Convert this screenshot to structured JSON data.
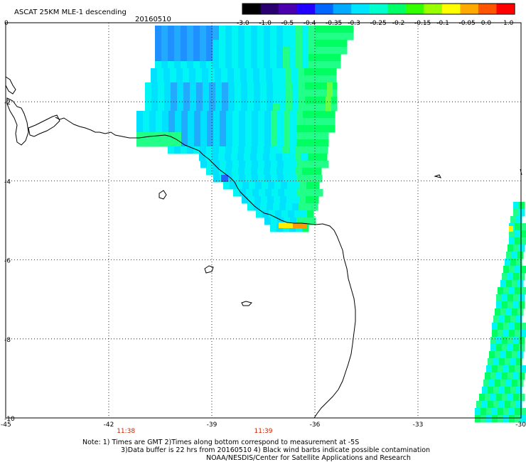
{
  "header": {
    "title": "ASCAT 25KM MLE-1 descending",
    "date": "20160510"
  },
  "colorbar": {
    "labels": [
      "-3.0",
      "-1.0",
      "-0.5",
      "-0.4",
      "-0.35",
      "-0.3",
      "-0.25",
      "-0.2",
      "-0.15",
      "-0.1",
      "-0.05",
      "0.0",
      "1.0"
    ],
    "colors": [
      "#000000",
      "#2a0070",
      "#4b00b0",
      "#2200ff",
      "#0066ff",
      "#00aaff",
      "#00e5ff",
      "#00ffcc",
      "#00ff66",
      "#33ff00",
      "#99ff00",
      "#ffff00",
      "#ffaa00",
      "#ff5500",
      "#ff0000"
    ]
  },
  "map": {
    "lon_range": [
      -45,
      -30
    ],
    "lat_range": [
      -10,
      0
    ],
    "lon_ticks": [
      "-45",
      "-42",
      "-39",
      "-36",
      "-33",
      "-30"
    ],
    "lat_ticks": [
      "0",
      "-2",
      "-4",
      "-6",
      "-8",
      "-10"
    ],
    "time_labels": [
      {
        "lon": -41.5,
        "text": "11:38"
      },
      {
        "lon": -37.5,
        "text": "11:39"
      }
    ]
  },
  "notes": {
    "line1": "Note: 1) Times are GMT 2)Times along bottom correspond to measurement at -5S",
    "line2": "3)Data buffer is 22 hrs from 20160510 4) Black wind barbs indicate possible contamination",
    "line3": "NOAA/NESDIS/Center for Satellite Applications and Research"
  }
}
